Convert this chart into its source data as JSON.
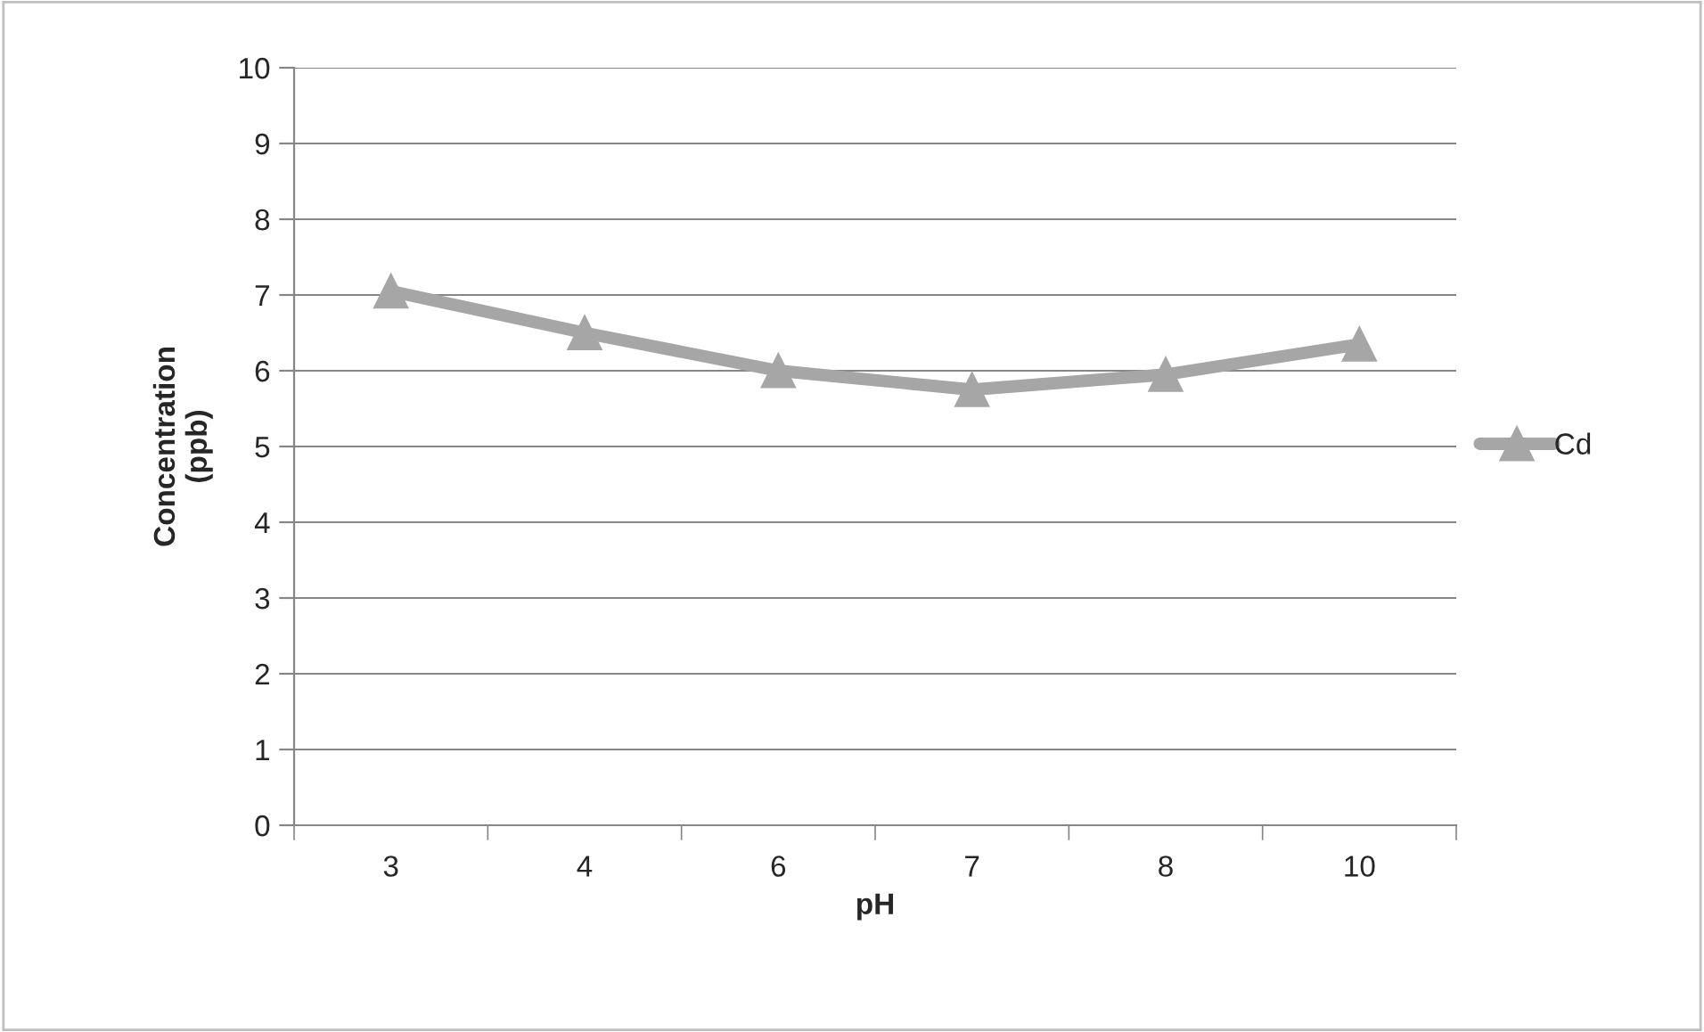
{
  "chart_data": {
    "type": "line",
    "xlabel": "pH",
    "ylabel": "Concentration\n(ppb)",
    "categories": [
      "3",
      "4",
      "6",
      "7",
      "8",
      "10"
    ],
    "series": [
      {
        "name": "Cd",
        "color": "#a6a6a6",
        "values": [
          7.05,
          6.5,
          6.0,
          5.75,
          5.95,
          6.35
        ]
      }
    ],
    "ylim": [
      0,
      10
    ],
    "yticks": [
      0,
      1,
      2,
      3,
      4,
      5,
      6,
      7,
      8,
      9,
      10
    ],
    "grid": "y",
    "legend": "right",
    "marker": "triangle",
    "line_style": "solid"
  }
}
